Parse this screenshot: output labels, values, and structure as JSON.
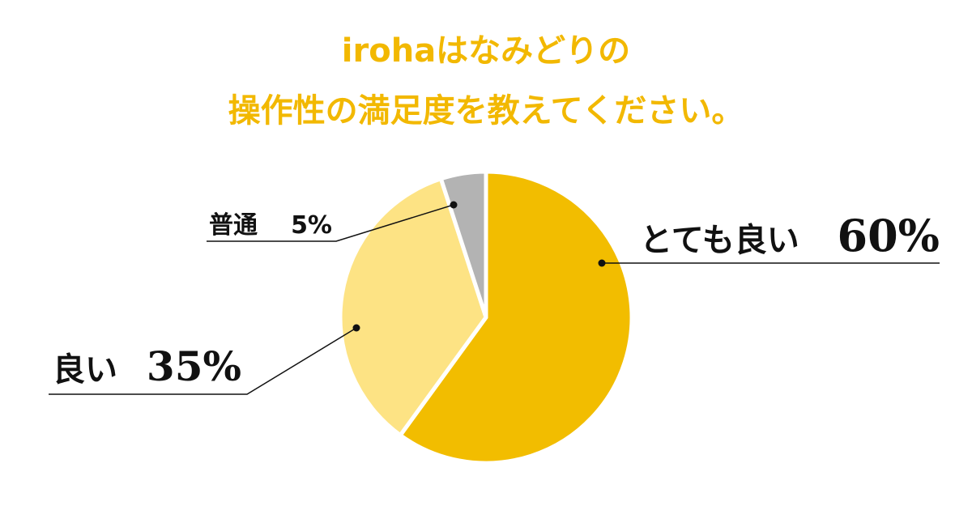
{
  "chart_data": {
    "type": "pie",
    "title": [
      "irohaはなみどりの",
      "操作性の満足度を教えてください。"
    ],
    "categories": [
      "とても良い",
      "良い",
      "普通"
    ],
    "values": [
      60,
      35,
      5
    ],
    "value_labels": [
      "60%",
      "35%",
      "5%"
    ],
    "colors": [
      "#f2bd00",
      "#fde384",
      "#b3b3b3"
    ]
  }
}
